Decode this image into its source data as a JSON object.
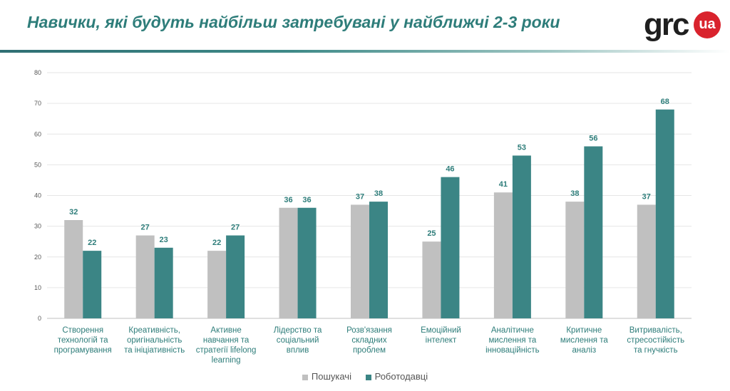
{
  "header": {
    "title": "Навички, які будуть найбільш затребувані у найближчі 2-3 роки",
    "logo_text": "grc",
    "logo_badge": "ua"
  },
  "colors": {
    "accent": "#2e7d7a",
    "logo_red": "#d9232d",
    "series_seekers": "#c0c0c0",
    "series_employers": "#3b8585"
  },
  "chart_data": {
    "type": "bar",
    "categories": [
      [
        "Створення",
        "технологій та",
        "програмування"
      ],
      [
        "Креативність,",
        "оригінальність",
        "та ініціативність"
      ],
      [
        "Активне",
        "навчання та",
        "стратегії lifelong",
        "learning"
      ],
      [
        "Лідерство та",
        "соціальний",
        "вплив"
      ],
      [
        "Розв'язання",
        "складних",
        "проблем"
      ],
      [
        "Емоційний",
        "інтелект"
      ],
      [
        "Аналітичне",
        "мислення та",
        "інноваційність"
      ],
      [
        "Критичне",
        "мислення  та",
        "аналіз"
      ],
      [
        "Витривалість,",
        "стресостійкість",
        "та гнучкість"
      ]
    ],
    "series": [
      {
        "name": "Пошукачі",
        "values": [
          32,
          27,
          22,
          36,
          37,
          25,
          41,
          38,
          37
        ]
      },
      {
        "name": "Роботодавці",
        "values": [
          22,
          23,
          27,
          36,
          38,
          46,
          53,
          56,
          68
        ]
      }
    ],
    "ylim": [
      0,
      80
    ],
    "yticks": [
      0,
      10,
      20,
      30,
      40,
      50,
      60,
      70,
      80
    ],
    "grid": true,
    "legend": "bottom",
    "data_labels": true
  }
}
